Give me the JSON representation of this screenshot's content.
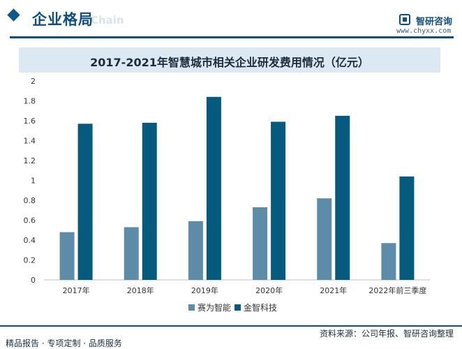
{
  "header": {
    "section_title": "企业格局",
    "section_bg_text": "Chain",
    "logo_name": "智研咨询",
    "logo_site": "www.chyxx.com"
  },
  "footer": {
    "source": "资料来源：公司年报、智研咨询整理",
    "slogan": "精品报告 · 专项定制 · 品质服务"
  },
  "colors": {
    "brand": "#0f4f7d",
    "series_1": "#5d8ca8",
    "series_2": "#055a7e",
    "title_bar": "#dde9f2"
  },
  "chart_data": {
    "type": "bar",
    "title": "2017-2021年智慧城市相关企业研发费用情况（亿元）",
    "categories": [
      "2017年",
      "2018年",
      "2019年",
      "2020年",
      "2021年",
      "2022年前三季度"
    ],
    "series": [
      {
        "name": "赛为智能",
        "values": [
          0.48,
          0.53,
          0.59,
          0.73,
          0.82,
          0.37
        ]
      },
      {
        "name": "金智科技",
        "values": [
          1.57,
          1.58,
          1.84,
          1.59,
          1.65,
          1.04
        ]
      }
    ],
    "ylim": [
      0,
      2
    ],
    "yticks": [
      "0",
      "0.2",
      "0.4",
      "0.6",
      "0.8",
      "1",
      "1.2",
      "1.4",
      "1.6",
      "1.8",
      "2"
    ],
    "xlabel": "",
    "ylabel": "",
    "grid": false,
    "legend": "bottom"
  }
}
